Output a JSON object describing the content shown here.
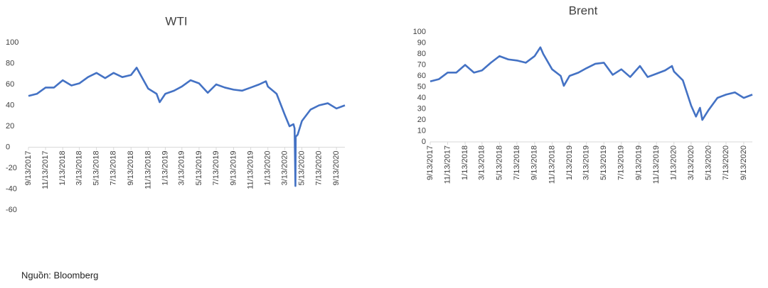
{
  "chart_data": [
    {
      "type": "line",
      "title": "WTI",
      "color": "#4472c4",
      "x": [
        "9/13/2017",
        "10/13/2017",
        "11/13/2017",
        "12/13/2017",
        "1/13/2018",
        "2/13/2018",
        "3/13/2018",
        "4/13/2018",
        "5/13/2018",
        "6/13/2018",
        "7/13/2018",
        "8/13/2018",
        "9/13/2018",
        "10/3/2018",
        "10/13/2018",
        "11/13/2018",
        "12/13/2018",
        "12/24/2018",
        "1/13/2019",
        "2/13/2019",
        "3/13/2019",
        "4/13/2019",
        "5/13/2019",
        "6/13/2019",
        "7/13/2019",
        "8/13/2019",
        "9/13/2019",
        "10/13/2019",
        "11/13/2019",
        "12/13/2019",
        "1/6/2020",
        "1/13/2020",
        "2/13/2020",
        "3/13/2020",
        "3/30/2020",
        "4/13/2020",
        "4/17/2020",
        "4/20/2020",
        "4/21/2020",
        "4/28/2020",
        "5/13/2020",
        "6/13/2020",
        "7/13/2020",
        "8/13/2020",
        "9/13/2020",
        "10/13/2020"
      ],
      "values": [
        49,
        51,
        57,
        57,
        64,
        59,
        61,
        67,
        71,
        66,
        71,
        67,
        69,
        76,
        71,
        56,
        51,
        43,
        51,
        54,
        58,
        64,
        61,
        52,
        60,
        57,
        55,
        54,
        57,
        60,
        63,
        58,
        51,
        31,
        20,
        22,
        18,
        -37,
        10,
        12,
        25,
        36,
        40,
        42,
        37,
        40
      ],
      "xlim": [
        "9/13/2017",
        "10/13/2020"
      ],
      "xticks": [
        "9/13/2017",
        "11/13/2017",
        "1/13/2018",
        "3/13/2018",
        "5/13/2018",
        "7/13/2018",
        "9/13/2018",
        "11/13/2018",
        "1/13/2019",
        "3/13/2019",
        "5/13/2019",
        "7/13/2019",
        "9/13/2019",
        "11/13/2019",
        "1/13/2020",
        "3/13/2020",
        "5/13/2020",
        "7/13/2020",
        "9/13/2020"
      ],
      "ylim": [
        -60,
        100
      ],
      "yticks": [
        -60,
        -40,
        -20,
        0,
        20,
        40,
        60,
        80,
        100
      ]
    },
    {
      "type": "line",
      "title": "Brent",
      "color": "#4472c4",
      "x": [
        "9/13/2017",
        "10/13/2017",
        "11/13/2017",
        "12/13/2017",
        "1/13/2018",
        "2/13/2018",
        "3/13/2018",
        "4/13/2018",
        "5/13/2018",
        "6/13/2018",
        "7/13/2018",
        "8/13/2018",
        "9/13/2018",
        "10/3/2018",
        "10/13/2018",
        "11/13/2018",
        "12/13/2018",
        "12/24/2018",
        "1/13/2019",
        "2/13/2019",
        "3/13/2019",
        "4/13/2019",
        "5/13/2019",
        "6/13/2019",
        "7/13/2019",
        "8/13/2019",
        "9/16/2019",
        "10/13/2019",
        "11/13/2019",
        "12/13/2019",
        "1/6/2020",
        "1/13/2020",
        "2/13/2020",
        "3/13/2020",
        "3/30/2020",
        "4/13/2020",
        "4/21/2020",
        "5/13/2020",
        "6/13/2020",
        "7/13/2020",
        "8/13/2020",
        "9/13/2020",
        "10/13/2020"
      ],
      "values": [
        55,
        57,
        63,
        63,
        70,
        63,
        65,
        72,
        78,
        75,
        74,
        72,
        78,
        86,
        80,
        66,
        60,
        51,
        60,
        63,
        67,
        71,
        72,
        61,
        66,
        59,
        69,
        59,
        62,
        65,
        69,
        64,
        56,
        33,
        23,
        31,
        20,
        29,
        40,
        43,
        45,
        40,
        43
      ],
      "xlim": [
        "9/13/2017",
        "10/13/2020"
      ],
      "xticks": [
        "9/13/2017",
        "11/13/2017",
        "1/13/2018",
        "3/13/2018",
        "5/13/2018",
        "7/13/2018",
        "9/13/2018",
        "11/13/2018",
        "1/13/2019",
        "3/13/2019",
        "5/13/2019",
        "7/13/2019",
        "9/13/2019",
        "11/13/2019",
        "1/13/2020",
        "3/13/2020",
        "5/13/2020",
        "7/13/2020",
        "9/13/2020"
      ],
      "ylim": [
        0,
        100
      ],
      "yticks": [
        0,
        10,
        20,
        30,
        40,
        50,
        60,
        70,
        80,
        90,
        100
      ]
    }
  ],
  "source": "Nguồn: Bloomberg"
}
